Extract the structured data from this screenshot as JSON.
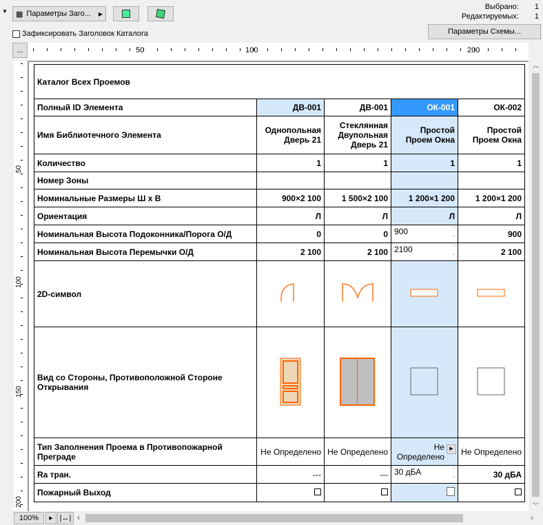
{
  "toolbar": {
    "header_params": "Параметры Заго...",
    "fix_header": "Зафиксировать Заголовок Каталога",
    "scheme_params": "Параметры Схемы...",
    "more": "...",
    "selected_label": "Выбрано:",
    "selected_value": "1",
    "editable_label": "Редактируемых:",
    "editable_value": "1"
  },
  "ruler": {
    "top": [
      "50",
      "100",
      "200"
    ],
    "left": [
      "50",
      "100",
      "150",
      "200"
    ]
  },
  "table": {
    "title": "Каталог Всех Проемов",
    "rows": [
      {
        "label": "Полный ID Элемента",
        "values": [
          "ДВ-001",
          "ДВ-001",
          "ОК-001",
          "ОК-002"
        ]
      },
      {
        "label": "Имя Библиотечного Элемента",
        "values": [
          "Однопольная Дверь 21",
          "Стеклянная Двупольная Дверь 21",
          "Простой Проем Окна",
          "Простой Проем Окна"
        ]
      },
      {
        "label": "Количество",
        "values": [
          "1",
          "1",
          "1",
          "1"
        ]
      },
      {
        "label": "Номер Зоны",
        "values": [
          "",
          "",
          "",
          ""
        ]
      },
      {
        "label": "Номинальные Размеры  Ш x В",
        "values": [
          "900×2 100",
          "1 500×2 100",
          "1 200×1 200",
          "1 200×1 200"
        ]
      },
      {
        "label": "Ориентация",
        "values": [
          "Л",
          "Л",
          "Л",
          "Л"
        ]
      },
      {
        "label": "Номинальная Высота Подоконника/Порога О/Д",
        "values": [
          "0",
          "0",
          "900",
          "900"
        ]
      },
      {
        "label": "Номинальная Высота Перемычки О/Д",
        "values": [
          "2 100",
          "2 100",
          "2100",
          "2 100"
        ]
      },
      {
        "label": "2D-символ",
        "icons": [
          "door-single-plan-icon",
          "door-double-plan-icon",
          "window-plan-icon",
          "window-plan-icon"
        ]
      },
      {
        "label": "Вид со Стороны, Противоположной Стороне Открывания",
        "icons": [
          "door-single-elevation-icon",
          "door-double-elevation-icon",
          "window-elevation-icon",
          "window-elevation-icon"
        ]
      },
      {
        "label": "Тип Заполнения Проема в Противопожарной Преграде",
        "values": [
          "Не Определено",
          "Не Определено",
          "Не Определено",
          "Не Определено"
        ]
      },
      {
        "label": "Ra тран.",
        "values": [
          "---",
          "---",
          "30 дБА",
          "30 дБА"
        ]
      },
      {
        "label": "Пожарный Выход",
        "checkboxes": [
          false,
          false,
          false,
          false
        ]
      }
    ]
  },
  "footer": {
    "zoom": "100%"
  },
  "colors": {
    "selected_column": "#d6e9fb",
    "selected_header": "#3399ff",
    "symbol": "#ff6600"
  }
}
